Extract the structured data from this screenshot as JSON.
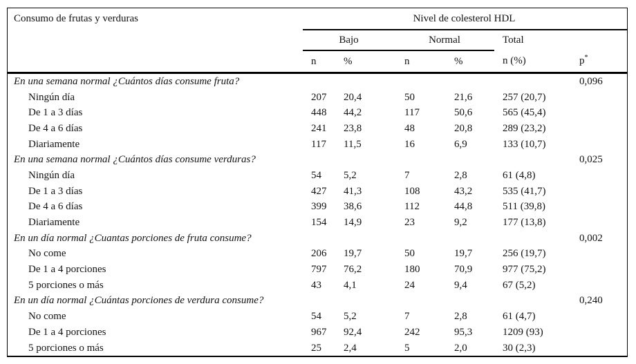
{
  "page": {
    "background": "#ffffff",
    "text_color": "#111111",
    "rule_color": "#000000"
  },
  "table": {
    "row_group_header": "Consumo de frutas y verduras",
    "span_header": "Nivel de colesterol HDL",
    "group_headers": {
      "bajo": "Bajo",
      "normal": "Normal",
      "total": "Total"
    },
    "sub_headers": {
      "bajo_n": "n",
      "bajo_pct": "%",
      "normal_n": "n",
      "normal_pct": "%",
      "total": "n (%)",
      "p_base": "p",
      "p_sup": "*"
    },
    "sections": [
      {
        "question": "En una semana normal ¿Cuántos días consume fruta?",
        "p_value": "0,096",
        "rows": [
          {
            "label": "Ningún día",
            "bajo_n": "207",
            "bajo_pct": "20,4",
            "normal_n": "50",
            "normal_pct": "21,6",
            "total": "257 (20,7)"
          },
          {
            "label": "De 1 a 3 días",
            "bajo_n": "448",
            "bajo_pct": "44,2",
            "normal_n": "117",
            "normal_pct": "50,6",
            "total": "565 (45,4)"
          },
          {
            "label": "De 4 a 6 días",
            "bajo_n": "241",
            "bajo_pct": "23,8",
            "normal_n": "48",
            "normal_pct": "20,8",
            "total": "289 (23,2)"
          },
          {
            "label": "Diariamente",
            "bajo_n": "117",
            "bajo_pct": "11,5",
            "normal_n": "16",
            "normal_pct": "6,9",
            "total": "133 (10,7)"
          }
        ]
      },
      {
        "question": "En una semana normal ¿Cuántos días consume verduras?",
        "p_value": "0,025",
        "rows": [
          {
            "label": "Ningún día",
            "bajo_n": "54",
            "bajo_pct": "5,2",
            "normal_n": "7",
            "normal_pct": "2,8",
            "total": "61 (4,8)"
          },
          {
            "label": "De 1 a 3 días",
            "bajo_n": "427",
            "bajo_pct": "41,3",
            "normal_n": "108",
            "normal_pct": "43,2",
            "total": "535 (41,7)"
          },
          {
            "label": "De 4 a 6 días",
            "bajo_n": "399",
            "bajo_pct": "38,6",
            "normal_n": "112",
            "normal_pct": "44,8",
            "total": "511 (39,8)"
          },
          {
            "label": "Diariamente",
            "bajo_n": "154",
            "bajo_pct": "14,9",
            "normal_n": "23",
            "normal_pct": "9,2",
            "total": "177 (13,8)"
          }
        ]
      },
      {
        "question": "En un día normal ¿Cuantas porciones de fruta consume?",
        "p_value": "0,002",
        "rows": [
          {
            "label": "No come",
            "bajo_n": "206",
            "bajo_pct": "19,7",
            "normal_n": "50",
            "normal_pct": "19,7",
            "total": "256 (19,7)"
          },
          {
            "label": "De 1 a 4 porciones",
            "bajo_n": "797",
            "bajo_pct": "76,2",
            "normal_n": "180",
            "normal_pct": "70,9",
            "total": "977 (75,2)"
          },
          {
            "label": "5 porciones o más",
            "bajo_n": "43",
            "bajo_pct": "4,1",
            "normal_n": "24",
            "normal_pct": "9,4",
            "total": "67 (5,2)"
          }
        ]
      },
      {
        "question": "En un día normal ¿Cuántas porciones de verdura consume?",
        "p_value": "0,240",
        "rows": [
          {
            "label": "No come",
            "bajo_n": "54",
            "bajo_pct": "5,2",
            "normal_n": "7",
            "normal_pct": "2,8",
            "total": "61 (4,7)"
          },
          {
            "label": "De 1 a 4 porciones",
            "bajo_n": "967",
            "bajo_pct": "92,4",
            "normal_n": "242",
            "normal_pct": "95,3",
            "total": "1209 (93)"
          },
          {
            "label": "5 porciones o más",
            "bajo_n": "25",
            "bajo_pct": "2,4",
            "normal_n": "5",
            "normal_pct": "2,0",
            "total": "30 (2,3)"
          }
        ]
      }
    ]
  }
}
